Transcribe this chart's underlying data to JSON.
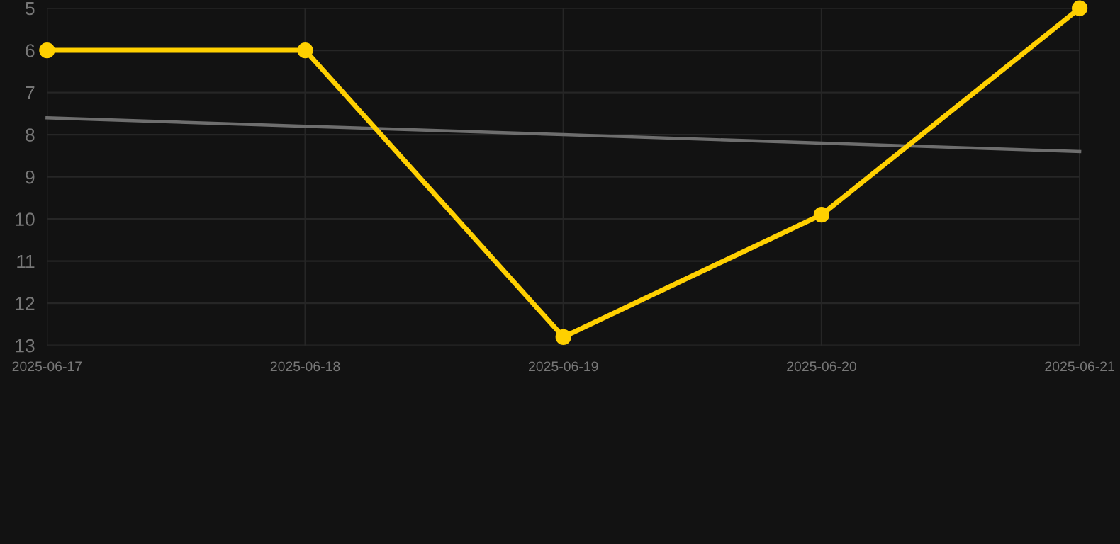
{
  "chart_data": {
    "type": "line",
    "categories": [
      "2025-06-17",
      "2025-06-18",
      "2025-06-19",
      "2025-06-20",
      "2025-06-21"
    ],
    "series": [
      {
        "color": "#ffd000",
        "values": [
          6,
          6,
          12.8,
          9.9,
          5
        ],
        "marker": "circle"
      },
      {
        "color": "#6e6e6e",
        "values": [
          7.6,
          7.8,
          8.0,
          8.2,
          8.4
        ],
        "marker": "none"
      }
    ],
    "ylim": [
      13,
      5
    ],
    "yticks": [
      5,
      6,
      7,
      8,
      9,
      10,
      11,
      12,
      13
    ],
    "grid": true
  }
}
